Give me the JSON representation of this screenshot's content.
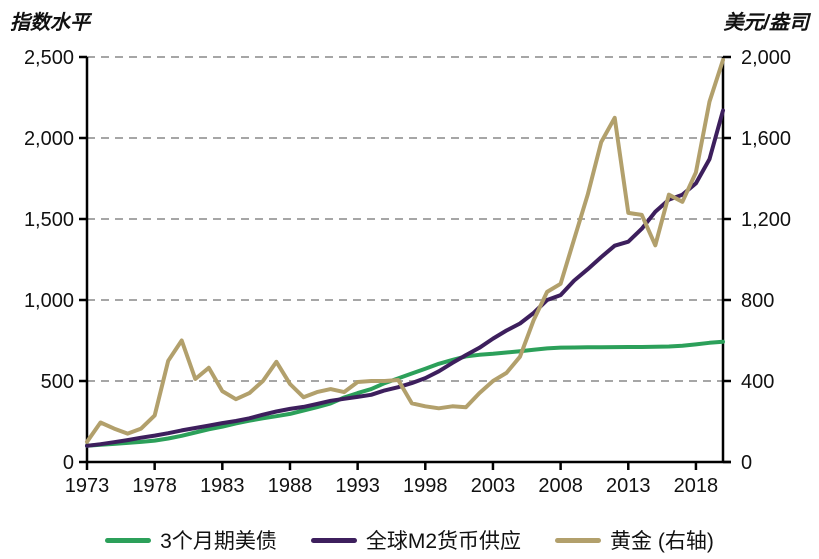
{
  "page": {
    "background": "#ffffff",
    "text_color": "#111111"
  },
  "chart_data": {
    "type": "line",
    "title_left_axis": "指数水平",
    "title_right_axis": "美元/盎司",
    "grid": "horizontal dashed",
    "legend_position": "bottom",
    "x_range": [
      1973,
      2020
    ],
    "x_ticks": [
      1973,
      1978,
      1983,
      1988,
      1993,
      1998,
      2003,
      2008,
      2013,
      2018
    ],
    "x": [
      1973,
      1974,
      1975,
      1976,
      1977,
      1978,
      1979,
      1980,
      1981,
      1982,
      1983,
      1984,
      1985,
      1986,
      1987,
      1988,
      1989,
      1990,
      1991,
      1992,
      1993,
      1994,
      1995,
      1996,
      1997,
      1998,
      1999,
      2000,
      2001,
      2002,
      2003,
      2004,
      2005,
      2006,
      2007,
      2008,
      2009,
      2010,
      2011,
      2012,
      2013,
      2014,
      2015,
      2016,
      2017,
      2018,
      2019,
      2020
    ],
    "left_axis": {
      "min": 0,
      "max": 2500,
      "tick_values": [
        0,
        500,
        1000,
        1500,
        2000,
        2500
      ],
      "tick_labels": [
        "0",
        "500",
        "1,000",
        "1,500",
        "2,000",
        "2,500"
      ]
    },
    "right_axis": {
      "min": 0,
      "max": 2000,
      "tick_values": [
        0,
        400,
        800,
        1200,
        1600,
        2000
      ],
      "tick_labels": [
        "0",
        "400",
        "800",
        "1,200",
        "1,600",
        "2,000"
      ]
    },
    "series": [
      {
        "name": "3个月期美债",
        "axis": "left",
        "color": "#2ca05a",
        "values": [
          100,
          106,
          112,
          118,
          124,
          132,
          145,
          162,
          182,
          202,
          218,
          238,
          255,
          270,
          283,
          297,
          318,
          338,
          362,
          398,
          425,
          450,
          487,
          516,
          546,
          576,
          606,
          630,
          652,
          662,
          668,
          676,
          684,
          693,
          701,
          706,
          707,
          708,
          708,
          709,
          710,
          710,
          711,
          713,
          718,
          726,
          736,
          742
        ]
      },
      {
        "name": "全球M2货币供应",
        "axis": "left",
        "color": "#3d1f5d",
        "values": [
          100,
          110,
          122,
          135,
          150,
          163,
          178,
          195,
          210,
          225,
          240,
          253,
          270,
          292,
          312,
          328,
          340,
          358,
          378,
          390,
          402,
          415,
          442,
          462,
          487,
          518,
          560,
          612,
          660,
          705,
          762,
          812,
          855,
          920,
          1000,
          1030,
          1120,
          1190,
          1265,
          1335,
          1360,
          1440,
          1545,
          1620,
          1650,
          1720,
          1870,
          2170
        ]
      },
      {
        "name": "黄金 (右轴)",
        "axis": "right",
        "color": "#b2a06c",
        "values": [
          100,
          195,
          165,
          140,
          165,
          230,
          500,
          600,
          410,
          465,
          350,
          310,
          340,
          400,
          495,
          385,
          320,
          345,
          360,
          345,
          395,
          400,
          400,
          405,
          290,
          275,
          265,
          275,
          270,
          340,
          400,
          440,
          520,
          700,
          840,
          880,
          1100,
          1320,
          1580,
          1700,
          1230,
          1220,
          1070,
          1320,
          1285,
          1430,
          1780,
          1985
        ]
      }
    ],
    "style": {
      "gridline_color": "#a6a6a6",
      "axis_color": "#000000",
      "tick_label_color": "#111111",
      "series_stroke_width": 4
    }
  }
}
